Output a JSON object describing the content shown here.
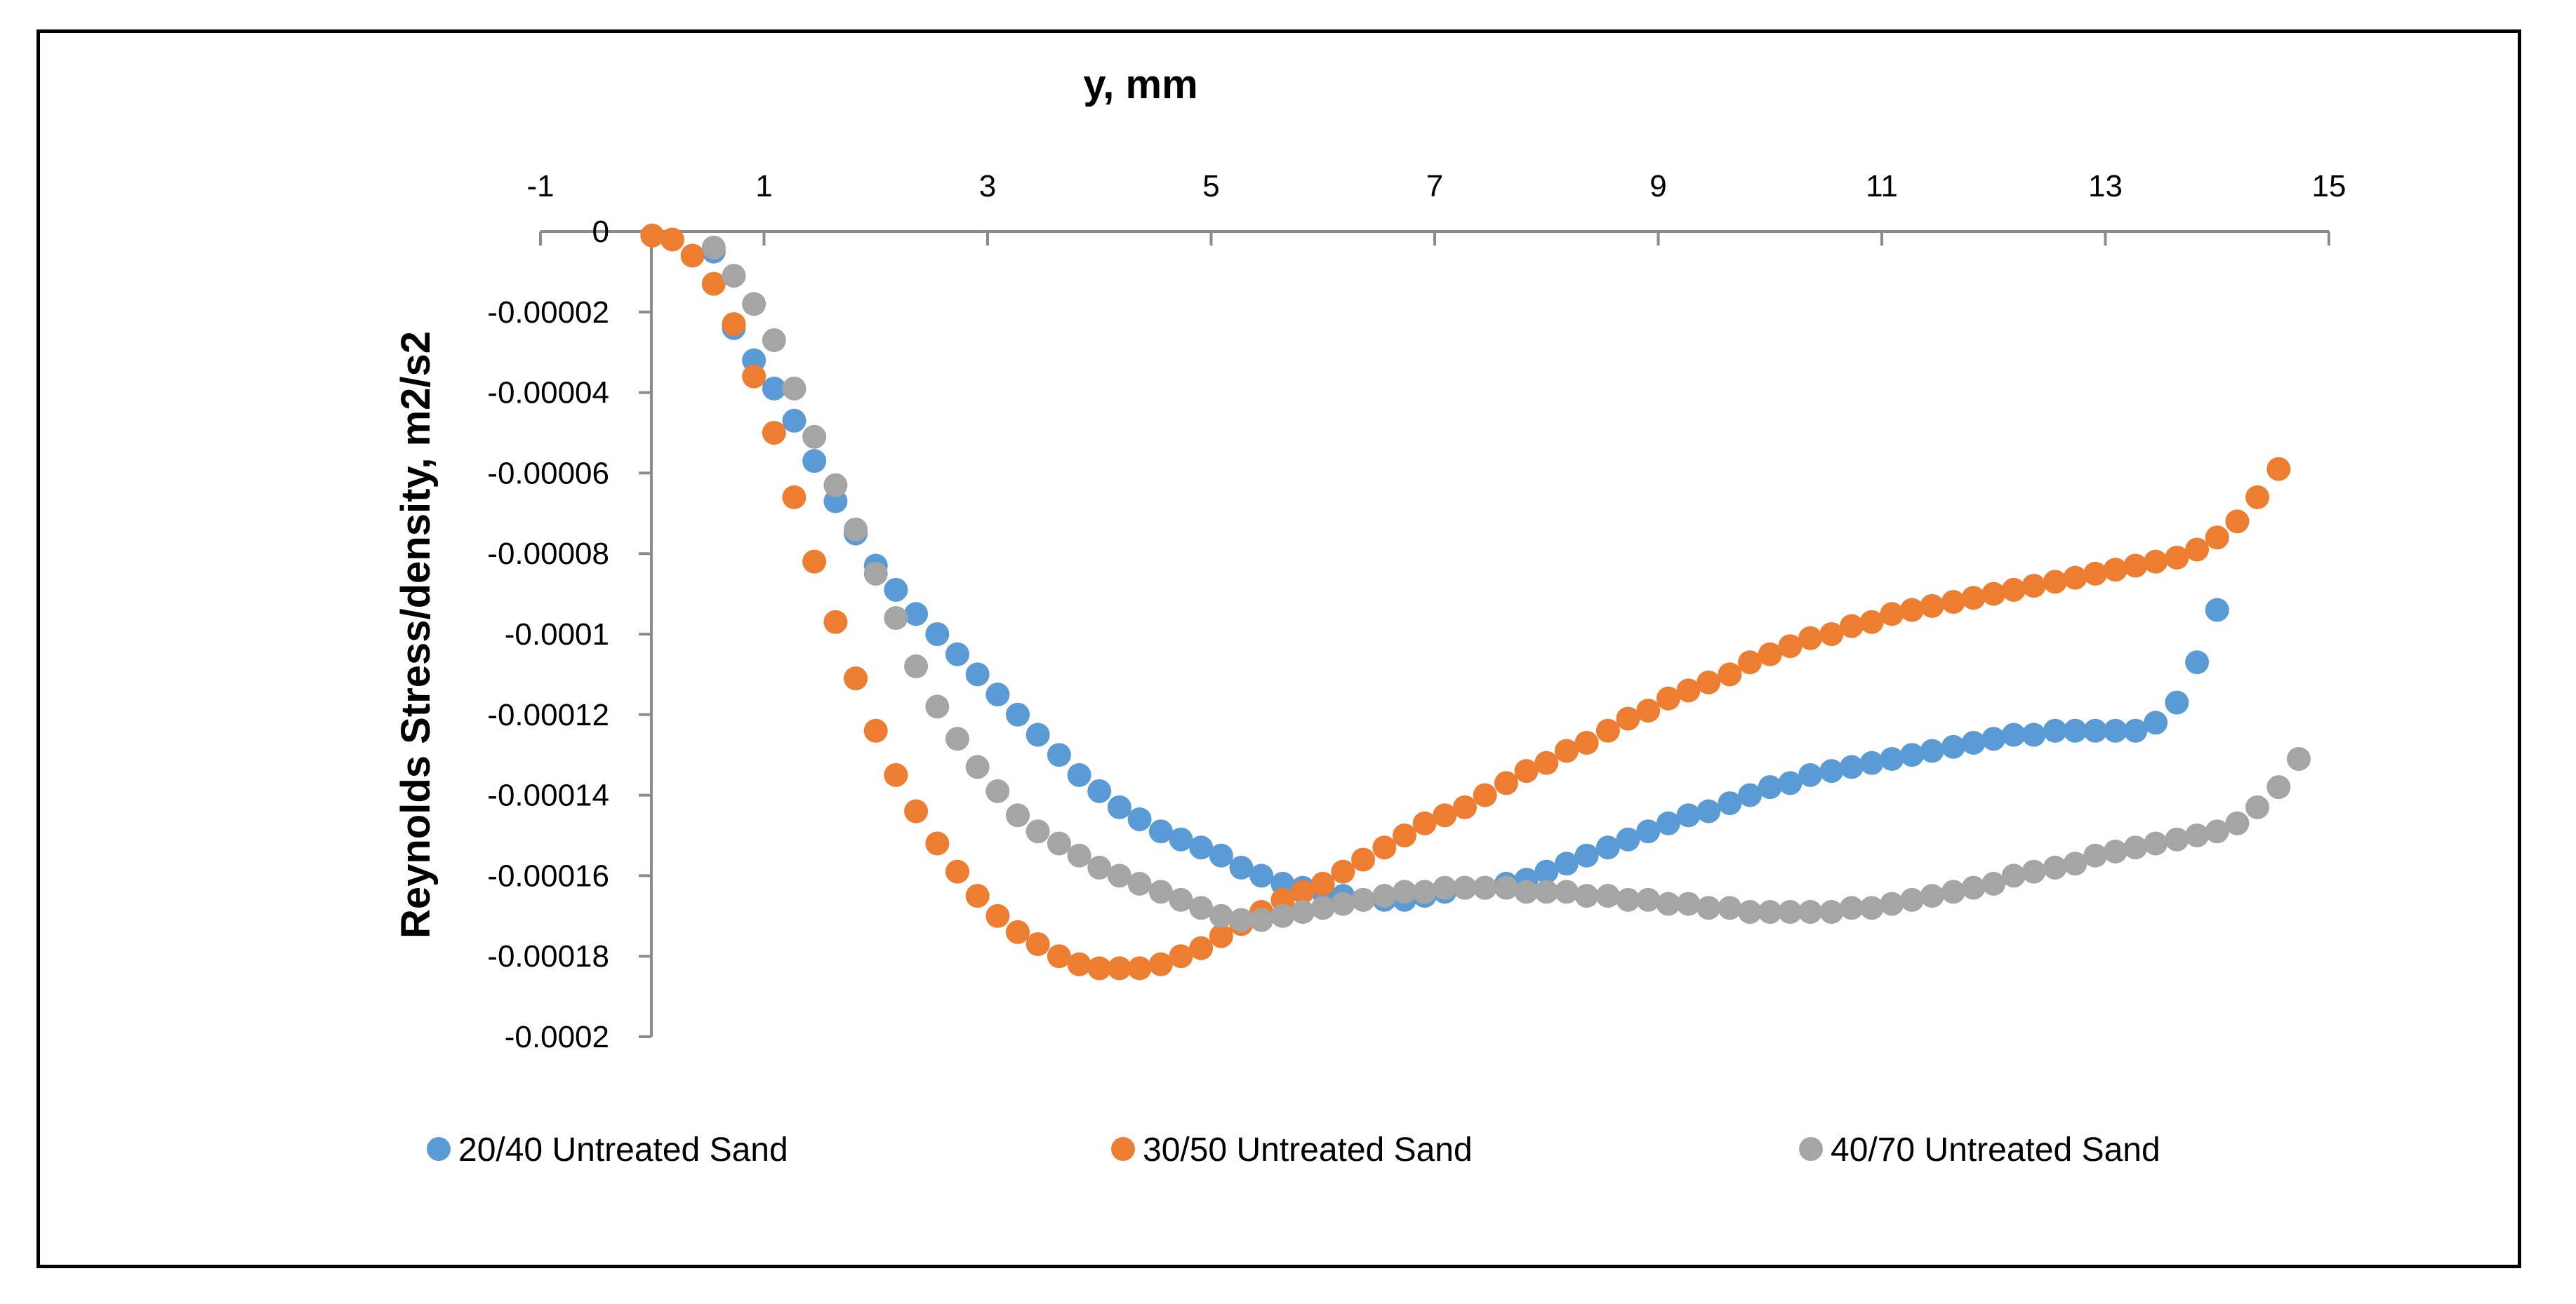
{
  "chart_data": {
    "type": "scatter",
    "title": "",
    "xlabel": "y, mm",
    "ylabel": "Reynolds Stress/density, m2/s2",
    "xlim": [
      -1,
      15
    ],
    "ylim": [
      -0.0002,
      0
    ],
    "x_ticks": [
      -1,
      1,
      3,
      5,
      7,
      9,
      11,
      13,
      15
    ],
    "x_tick_labels": [
      "-1",
      "1",
      "3",
      "5",
      "7",
      "9",
      "11",
      "13",
      "15"
    ],
    "y_ticks": [
      0,
      -2e-05,
      -4e-05,
      -6e-05,
      -8e-05,
      -0.0001,
      -0.00012,
      -0.00014,
      -0.00016,
      -0.00018,
      -0.0002
    ],
    "y_tick_labels": [
      "0",
      "-0.00002",
      "-0.00004",
      "-0.00006",
      "-0.00008",
      "-0.0001",
      "-0.00012",
      "-0.00014",
      "-0.00016",
      "-0.00018",
      "-0.0002"
    ],
    "x_axis_position": "top",
    "grid": false,
    "legend_position": "bottom",
    "series": [
      {
        "name": "20/40 Untreated Sand",
        "color": "#5B9BD5",
        "points": [
          [
            0.55,
            -5e-06
          ],
          [
            0.73,
            -2.4e-05
          ],
          [
            0.91,
            -3.2e-05
          ],
          [
            1.09,
            -3.9e-05
          ],
          [
            1.27,
            -4.7e-05
          ],
          [
            1.45,
            -5.7e-05
          ],
          [
            1.64,
            -6.7e-05
          ],
          [
            1.82,
            -7.5e-05
          ],
          [
            2.0,
            -8.3e-05
          ],
          [
            2.18,
            -8.9e-05
          ],
          [
            2.36,
            -9.5e-05
          ],
          [
            2.55,
            -0.0001
          ],
          [
            2.73,
            -0.000105
          ],
          [
            2.91,
            -0.00011
          ],
          [
            3.09,
            -0.000115
          ],
          [
            3.27,
            -0.00012
          ],
          [
            3.45,
            -0.000125
          ],
          [
            3.64,
            -0.00013
          ],
          [
            3.82,
            -0.000135
          ],
          [
            4.0,
            -0.000139
          ],
          [
            4.18,
            -0.000143
          ],
          [
            4.36,
            -0.000146
          ],
          [
            4.55,
            -0.000149
          ],
          [
            4.73,
            -0.000151
          ],
          [
            4.91,
            -0.000153
          ],
          [
            5.09,
            -0.000155
          ],
          [
            5.27,
            -0.000158
          ],
          [
            5.45,
            -0.00016
          ],
          [
            5.64,
            -0.000162
          ],
          [
            5.82,
            -0.000163
          ],
          [
            6.0,
            -0.000164
          ],
          [
            6.18,
            -0.000165
          ],
          [
            6.36,
            -0.000166
          ],
          [
            6.55,
            -0.000166
          ],
          [
            6.73,
            -0.000166
          ],
          [
            6.91,
            -0.000165
          ],
          [
            7.09,
            -0.000164
          ],
          [
            7.27,
            -0.000163
          ],
          [
            7.45,
            -0.000163
          ],
          [
            7.64,
            -0.000162
          ],
          [
            7.82,
            -0.000161
          ],
          [
            8.0,
            -0.000159
          ],
          [
            8.18,
            -0.000157
          ],
          [
            8.36,
            -0.000155
          ],
          [
            8.55,
            -0.000153
          ],
          [
            8.73,
            -0.000151
          ],
          [
            8.91,
            -0.000149
          ],
          [
            9.09,
            -0.000147
          ],
          [
            9.27,
            -0.000145
          ],
          [
            9.45,
            -0.000144
          ],
          [
            9.64,
            -0.000142
          ],
          [
            9.82,
            -0.00014
          ],
          [
            10.0,
            -0.000138
          ],
          [
            10.18,
            -0.000137
          ],
          [
            10.36,
            -0.000135
          ],
          [
            10.55,
            -0.000134
          ],
          [
            10.73,
            -0.000133
          ],
          [
            10.91,
            -0.000132
          ],
          [
            11.09,
            -0.000131
          ],
          [
            11.27,
            -0.00013
          ],
          [
            11.45,
            -0.000129
          ],
          [
            11.64,
            -0.000128
          ],
          [
            11.82,
            -0.000127
          ],
          [
            12.0,
            -0.000126
          ],
          [
            12.18,
            -0.000125
          ],
          [
            12.36,
            -0.000125
          ],
          [
            12.55,
            -0.000124
          ],
          [
            12.73,
            -0.000124
          ],
          [
            12.91,
            -0.000124
          ],
          [
            13.09,
            -0.000124
          ],
          [
            13.27,
            -0.000124
          ],
          [
            13.45,
            -0.000122
          ],
          [
            13.64,
            -0.000117
          ],
          [
            13.82,
            -0.000107
          ],
          [
            14.0,
            -9.4e-05
          ]
        ]
      },
      {
        "name": "30/50 Untreated Sand",
        "color": "#ED7D31",
        "points": [
          [
            0.0,
            -1e-06
          ],
          [
            0.18,
            -2e-06
          ],
          [
            0.36,
            -6e-06
          ],
          [
            0.55,
            -1.3e-05
          ],
          [
            0.73,
            -2.3e-05
          ],
          [
            0.91,
            -3.6e-05
          ],
          [
            1.09,
            -5e-05
          ],
          [
            1.27,
            -6.6e-05
          ],
          [
            1.45,
            -8.2e-05
          ],
          [
            1.64,
            -9.7e-05
          ],
          [
            1.82,
            -0.000111
          ],
          [
            2.0,
            -0.000124
          ],
          [
            2.18,
            -0.000135
          ],
          [
            2.36,
            -0.000144
          ],
          [
            2.55,
            -0.000152
          ],
          [
            2.73,
            -0.000159
          ],
          [
            2.91,
            -0.000165
          ],
          [
            3.09,
            -0.00017
          ],
          [
            3.27,
            -0.000174
          ],
          [
            3.45,
            -0.000177
          ],
          [
            3.64,
            -0.00018
          ],
          [
            3.82,
            -0.000182
          ],
          [
            4.0,
            -0.000183
          ],
          [
            4.18,
            -0.000183
          ],
          [
            4.36,
            -0.000183
          ],
          [
            4.55,
            -0.000182
          ],
          [
            4.73,
            -0.00018
          ],
          [
            4.91,
            -0.000178
          ],
          [
            5.09,
            -0.000175
          ],
          [
            5.27,
            -0.000172
          ],
          [
            5.45,
            -0.000169
          ],
          [
            5.64,
            -0.000166
          ],
          [
            5.82,
            -0.000164
          ],
          [
            6.0,
            -0.000162
          ],
          [
            6.18,
            -0.000159
          ],
          [
            6.36,
            -0.000156
          ],
          [
            6.55,
            -0.000153
          ],
          [
            6.73,
            -0.00015
          ],
          [
            6.91,
            -0.000147
          ],
          [
            7.09,
            -0.000145
          ],
          [
            7.27,
            -0.000143
          ],
          [
            7.45,
            -0.00014
          ],
          [
            7.64,
            -0.000137
          ],
          [
            7.82,
            -0.000134
          ],
          [
            8.0,
            -0.000132
          ],
          [
            8.18,
            -0.000129
          ],
          [
            8.36,
            -0.000127
          ],
          [
            8.55,
            -0.000124
          ],
          [
            8.73,
            -0.000121
          ],
          [
            8.91,
            -0.000119
          ],
          [
            9.09,
            -0.000116
          ],
          [
            9.27,
            -0.000114
          ],
          [
            9.45,
            -0.000112
          ],
          [
            9.64,
            -0.00011
          ],
          [
            9.82,
            -0.000107
          ],
          [
            10.0,
            -0.000105
          ],
          [
            10.18,
            -0.000103
          ],
          [
            10.36,
            -0.000101
          ],
          [
            10.55,
            -0.0001
          ],
          [
            10.73,
            -9.8e-05
          ],
          [
            10.91,
            -9.7e-05
          ],
          [
            11.09,
            -9.5e-05
          ],
          [
            11.27,
            -9.4e-05
          ],
          [
            11.45,
            -9.3e-05
          ],
          [
            11.64,
            -9.2e-05
          ],
          [
            11.82,
            -9.1e-05
          ],
          [
            12.0,
            -9e-05
          ],
          [
            12.18,
            -8.9e-05
          ],
          [
            12.36,
            -8.8e-05
          ],
          [
            12.55,
            -8.7e-05
          ],
          [
            12.73,
            -8.6e-05
          ],
          [
            12.91,
            -8.5e-05
          ],
          [
            13.09,
            -8.4e-05
          ],
          [
            13.27,
            -8.3e-05
          ],
          [
            13.45,
            -8.2e-05
          ],
          [
            13.64,
            -8.1e-05
          ],
          [
            13.82,
            -7.9e-05
          ],
          [
            14.0,
            -7.6e-05
          ],
          [
            14.18,
            -7.2e-05
          ],
          [
            14.36,
            -6.6e-05
          ],
          [
            14.55,
            -5.9e-05
          ]
        ]
      },
      {
        "name": "40/70 Untreated Sand",
        "color": "#A5A5A5",
        "points": [
          [
            0.55,
            -4e-06
          ],
          [
            0.73,
            -1.1e-05
          ],
          [
            0.91,
            -1.8e-05
          ],
          [
            1.09,
            -2.7e-05
          ],
          [
            1.27,
            -3.9e-05
          ],
          [
            1.45,
            -5.1e-05
          ],
          [
            1.64,
            -6.3e-05
          ],
          [
            1.82,
            -7.4e-05
          ],
          [
            2.0,
            -8.5e-05
          ],
          [
            2.18,
            -9.6e-05
          ],
          [
            2.36,
            -0.000108
          ],
          [
            2.55,
            -0.000118
          ],
          [
            2.73,
            -0.000126
          ],
          [
            2.91,
            -0.000133
          ],
          [
            3.09,
            -0.000139
          ],
          [
            3.27,
            -0.000145
          ],
          [
            3.45,
            -0.000149
          ],
          [
            3.64,
            -0.000152
          ],
          [
            3.82,
            -0.000155
          ],
          [
            4.0,
            -0.000158
          ],
          [
            4.18,
            -0.00016
          ],
          [
            4.36,
            -0.000162
          ],
          [
            4.55,
            -0.000164
          ],
          [
            4.73,
            -0.000166
          ],
          [
            4.91,
            -0.000168
          ],
          [
            5.09,
            -0.00017
          ],
          [
            5.27,
            -0.000171
          ],
          [
            5.45,
            -0.000171
          ],
          [
            5.64,
            -0.00017
          ],
          [
            5.82,
            -0.000169
          ],
          [
            6.0,
            -0.000168
          ],
          [
            6.18,
            -0.000167
          ],
          [
            6.36,
            -0.000166
          ],
          [
            6.55,
            -0.000165
          ],
          [
            6.73,
            -0.000164
          ],
          [
            6.91,
            -0.000164
          ],
          [
            7.09,
            -0.000163
          ],
          [
            7.27,
            -0.000163
          ],
          [
            7.45,
            -0.000163
          ],
          [
            7.64,
            -0.000163
          ],
          [
            7.82,
            -0.000164
          ],
          [
            8.0,
            -0.000164
          ],
          [
            8.18,
            -0.000164
          ],
          [
            8.36,
            -0.000165
          ],
          [
            8.55,
            -0.000165
          ],
          [
            8.73,
            -0.000166
          ],
          [
            8.91,
            -0.000166
          ],
          [
            9.09,
            -0.000167
          ],
          [
            9.27,
            -0.000167
          ],
          [
            9.45,
            -0.000168
          ],
          [
            9.64,
            -0.000168
          ],
          [
            9.82,
            -0.000169
          ],
          [
            10.0,
            -0.000169
          ],
          [
            10.18,
            -0.000169
          ],
          [
            10.36,
            -0.000169
          ],
          [
            10.55,
            -0.000169
          ],
          [
            10.73,
            -0.000168
          ],
          [
            10.91,
            -0.000168
          ],
          [
            11.09,
            -0.000167
          ],
          [
            11.27,
            -0.000166
          ],
          [
            11.45,
            -0.000165
          ],
          [
            11.64,
            -0.000164
          ],
          [
            11.82,
            -0.000163
          ],
          [
            12.0,
            -0.000162
          ],
          [
            12.18,
            -0.00016
          ],
          [
            12.36,
            -0.000159
          ],
          [
            12.55,
            -0.000158
          ],
          [
            12.73,
            -0.000157
          ],
          [
            12.91,
            -0.000155
          ],
          [
            13.09,
            -0.000154
          ],
          [
            13.27,
            -0.000153
          ],
          [
            13.45,
            -0.000152
          ],
          [
            13.64,
            -0.000151
          ],
          [
            13.82,
            -0.00015
          ],
          [
            14.0,
            -0.000149
          ],
          [
            14.18,
            -0.000147
          ],
          [
            14.36,
            -0.000143
          ],
          [
            14.55,
            -0.000138
          ],
          [
            14.73,
            -0.000131
          ]
        ]
      }
    ]
  }
}
